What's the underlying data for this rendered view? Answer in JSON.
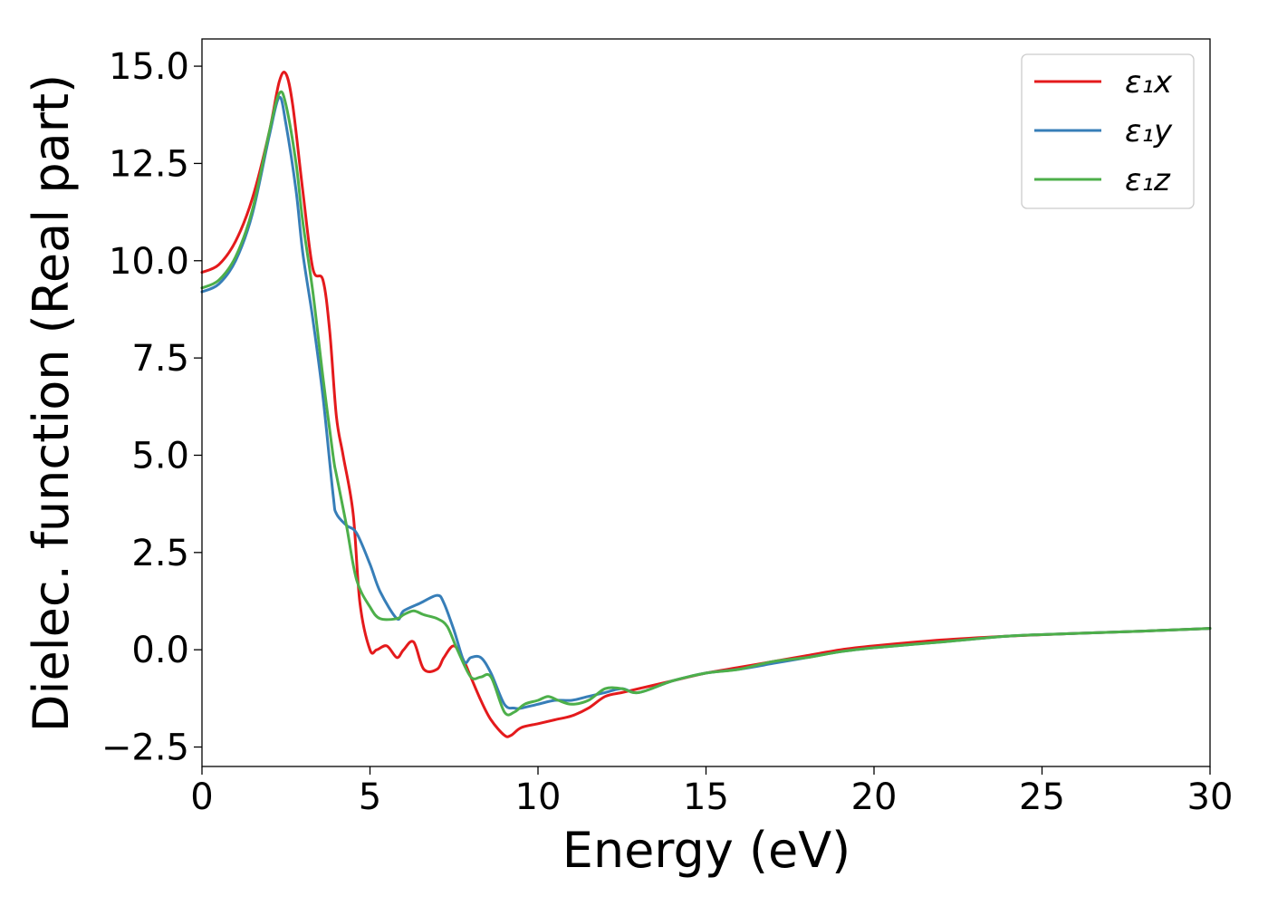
{
  "chart_data": {
    "type": "line",
    "xlabel": "Energy (eV)",
    "ylabel": "Dielec. function (Real part)",
    "xlim": [
      0,
      30
    ],
    "ylim": [
      -3.0,
      15.7
    ],
    "xticks": [
      0,
      5,
      10,
      15,
      20,
      25,
      30
    ],
    "xtick_labels": [
      "0",
      "5",
      "10",
      "15",
      "20",
      "25",
      "30"
    ],
    "yticks": [
      -2.5,
      0.0,
      2.5,
      5.0,
      7.5,
      10.0,
      12.5,
      15.0
    ],
    "ytick_labels": [
      "−2.5",
      "0.0",
      "2.5",
      "5.0",
      "7.5",
      "10.0",
      "12.5",
      "15.0"
    ],
    "grid": false,
    "legend_position": "top-right",
    "series": [
      {
        "name": "ε₁x",
        "color": "#e41a1c",
        "x": [
          0,
          0.5,
          1.0,
          1.5,
          2.0,
          2.3,
          2.5,
          2.7,
          3.0,
          3.3,
          3.6,
          3.8,
          4.0,
          4.2,
          4.5,
          4.7,
          5.0,
          5.2,
          5.5,
          5.8,
          6.0,
          6.3,
          6.6,
          7.0,
          7.2,
          7.5,
          7.8,
          8.0,
          8.3,
          8.6,
          9.0,
          9.2,
          9.5,
          10.0,
          10.5,
          11.0,
          11.5,
          12.0,
          12.5,
          13.0,
          14.0,
          15.0,
          16.0,
          17.0,
          18.0,
          19.0,
          20.0,
          22.0,
          24.0,
          26.0,
          28.0,
          30.0
        ],
        "y": [
          9.7,
          9.9,
          10.5,
          11.6,
          13.3,
          14.6,
          14.8,
          14.0,
          11.8,
          9.8,
          9.5,
          8.2,
          6.0,
          5.0,
          3.5,
          1.2,
          0.0,
          0.0,
          0.1,
          -0.2,
          0.0,
          0.2,
          -0.5,
          -0.5,
          -0.2,
          0.1,
          -0.3,
          -0.7,
          -1.3,
          -1.8,
          -2.2,
          -2.2,
          -2.0,
          -1.9,
          -1.8,
          -1.7,
          -1.5,
          -1.2,
          -1.1,
          -1.0,
          -0.8,
          -0.6,
          -0.45,
          -0.3,
          -0.15,
          0.0,
          0.1,
          0.25,
          0.35,
          0.42,
          0.48,
          0.55
        ]
      },
      {
        "name": "ε₁y",
        "color": "#377eb8",
        "x": [
          0,
          0.5,
          1.0,
          1.5,
          2.0,
          2.3,
          2.5,
          2.8,
          3.0,
          3.3,
          3.6,
          3.9,
          4.0,
          4.3,
          4.6,
          5.0,
          5.3,
          5.8,
          6.0,
          6.5,
          7.0,
          7.2,
          7.5,
          7.8,
          8.0,
          8.3,
          8.6,
          9.0,
          9.3,
          9.5,
          10.0,
          10.5,
          11.0,
          11.5,
          12.0,
          12.5,
          13.0,
          14.0,
          15.0,
          16.0,
          17.0,
          18.0,
          19.0,
          20.0,
          22.0,
          24.0,
          26.0,
          28.0,
          30.0
        ],
        "y": [
          9.2,
          9.4,
          10.0,
          11.2,
          13.2,
          14.2,
          13.5,
          11.8,
          10.2,
          8.5,
          6.5,
          4.0,
          3.5,
          3.2,
          3.0,
          2.2,
          1.5,
          0.8,
          1.0,
          1.2,
          1.4,
          1.2,
          0.5,
          -0.3,
          -0.2,
          -0.2,
          -0.6,
          -1.4,
          -1.5,
          -1.5,
          -1.4,
          -1.3,
          -1.3,
          -1.2,
          -1.1,
          -1.0,
          -1.1,
          -0.8,
          -0.6,
          -0.5,
          -0.35,
          -0.2,
          -0.05,
          0.05,
          0.2,
          0.35,
          0.42,
          0.48,
          0.55
        ]
      },
      {
        "name": "ε₁z",
        "color": "#4daf4a",
        "x": [
          0,
          0.5,
          1.0,
          1.5,
          2.0,
          2.3,
          2.5,
          2.8,
          3.0,
          3.3,
          3.6,
          3.9,
          4.0,
          4.3,
          4.6,
          5.0,
          5.3,
          5.8,
          6.0,
          6.3,
          6.6,
          7.0,
          7.3,
          7.6,
          8.0,
          8.3,
          8.6,
          9.0,
          9.3,
          9.6,
          10.0,
          10.3,
          10.6,
          11.0,
          11.5,
          12.0,
          12.5,
          13.0,
          14.0,
          15.0,
          16.0,
          17.0,
          18.0,
          19.0,
          20.0,
          22.0,
          24.0,
          26.0,
          28.0,
          30.0
        ],
        "y": [
          9.3,
          9.5,
          10.1,
          11.3,
          13.3,
          14.3,
          14.0,
          12.5,
          11.0,
          9.2,
          7.0,
          5.0,
          4.5,
          3.2,
          1.8,
          1.1,
          0.8,
          0.8,
          0.9,
          1.0,
          0.9,
          0.8,
          0.6,
          0.0,
          -0.7,
          -0.7,
          -0.7,
          -1.6,
          -1.6,
          -1.4,
          -1.3,
          -1.2,
          -1.3,
          -1.4,
          -1.3,
          -1.0,
          -1.0,
          -1.1,
          -0.8,
          -0.6,
          -0.5,
          -0.3,
          -0.2,
          -0.05,
          0.05,
          0.2,
          0.35,
          0.42,
          0.48,
          0.55
        ]
      }
    ]
  }
}
